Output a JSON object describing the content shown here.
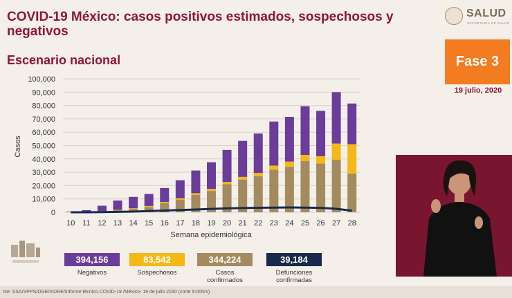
{
  "header": {
    "title": "COVID-19 México: casos positivos estimados, sospechosos y negativos",
    "subtitle": "Escenario nacional",
    "logo_text": "SALUD",
    "logo_sub": "SECRETARÍA DE SALUD",
    "phase": "Fase 3",
    "date": "19 julio, 2020"
  },
  "chart_data": {
    "type": "bar",
    "xlabel": "Semana epidemiológica",
    "ylabel": "Casos",
    "ylim": [
      0,
      100000
    ],
    "yticks": [
      "0",
      "10,000",
      "20,000",
      "30,000",
      "40,000",
      "50,000",
      "60,000",
      "70,000",
      "80,000",
      "90,000",
      "100,000"
    ],
    "grid": true,
    "categories": [
      "10",
      "11",
      "12",
      "13",
      "14",
      "15",
      "16",
      "17",
      "18",
      "19",
      "20",
      "21",
      "22",
      "23",
      "24",
      "25",
      "26",
      "27",
      "28"
    ],
    "series": [
      {
        "name": "Casos confirmados",
        "color": "#a38a5f",
        "values": [
          100,
          300,
          700,
          1500,
          2500,
          4000,
          6800,
          9500,
          13000,
          16000,
          21000,
          24500,
          27000,
          32000,
          34000,
          38500,
          36500,
          39500,
          29000
        ]
      },
      {
        "name": "Sospechosos",
        "color": "#f5b817",
        "values": [
          50,
          100,
          200,
          300,
          500,
          700,
          900,
          1000,
          1300,
          1500,
          1700,
          2000,
          2500,
          3000,
          4000,
          4500,
          5500,
          12000,
          22000
        ]
      },
      {
        "name": "Negativos",
        "color": "#6a3d9a",
        "values": [
          300,
          1200,
          4000,
          7000,
          8500,
          9000,
          10500,
          13500,
          17000,
          20000,
          24000,
          27000,
          29500,
          33000,
          33500,
          36500,
          34000,
          38500,
          30500
        ]
      },
      {
        "name": "Defunciones confirmadas",
        "type": "line",
        "color": "#162a4a",
        "values": [
          0,
          0,
          100,
          300,
          500,
          900,
          1300,
          1700,
          2100,
          2500,
          2900,
          3200,
          3400,
          3500,
          3600,
          3500,
          3300,
          2600,
          1200
        ]
      }
    ]
  },
  "stats": [
    {
      "value": "394,156",
      "label": "Negativos",
      "color": "#6a3d9a"
    },
    {
      "value": "83,542",
      "label": "Sospechosos",
      "color": "#f5b817"
    },
    {
      "value": "344,224",
      "label": "Casos confirmados",
      "color": "#a38a5f"
    },
    {
      "value": "39,184",
      "label": "Defunciones confirmadas",
      "color": "#162a4a"
    }
  ],
  "footer": "nte: SSA/SPPS/DGE/InDRE/Informe técnico.COVID-19 /México- 19 de julio 2020 (corte 9:00hrs)"
}
